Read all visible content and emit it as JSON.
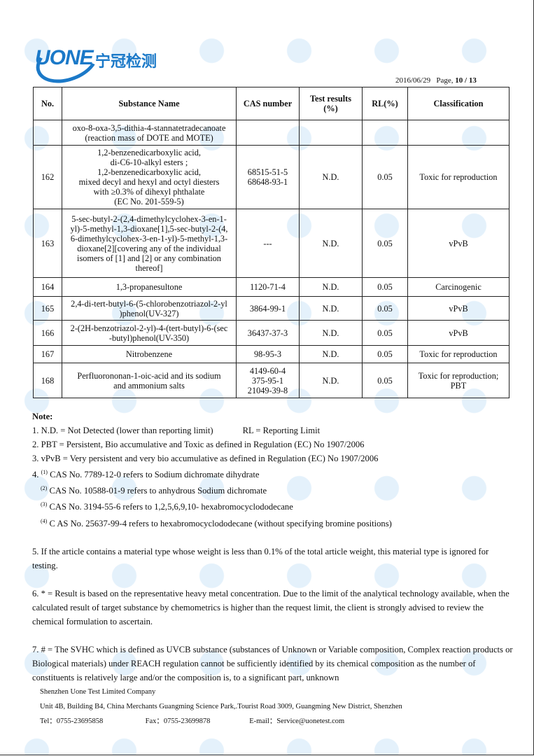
{
  "header": {
    "logo_text": "UONE",
    "logo_cn": "宁冠检测",
    "brand_color": "#1b79c8",
    "date": "2016/06/29",
    "page_label": "Page,",
    "page_number": "10 / 13"
  },
  "table": {
    "columns": [
      "No.",
      "Substance Name",
      "CAS number",
      "Test results\n(%)",
      "RL(%)",
      "Classification"
    ],
    "rows": [
      {
        "no": "",
        "name": "oxo-8-oxa-3,5-dithia-4-stannatetradecanoate\n(reaction mass of DOTE and MOTE)",
        "cas": "",
        "result": "",
        "rl": "",
        "class": ""
      },
      {
        "no": "162",
        "name": "1,2-benzenedicarboxylic acid,\ndi-C6-10-alkyl esters ;\n1,2-benzenedicarboxylic acid,\nmixed decyl and hexyl and octyl diesters\nwith ≥0.3% of dihexyl phthalate\n(EC No. 201-559-5)",
        "cas": "68515-51-5\n68648-93-1",
        "result": "N.D.",
        "rl": "0.05",
        "class": "Toxic for reproduction"
      },
      {
        "no": "163",
        "name": "5-sec-butyl-2-(2,4-dimethylcyclohex-3-en-1-\nyl)-5-methyl-1,3-dioxane[1],5-sec-butyl-2-(4,\n6-dimethylcyclohex-3-en-1-yl)-5-methyl-1,3-\ndioxane[2][covering any of the individual\nisomers of [1] and [2] or any combination\nthereof]",
        "cas": "---",
        "result": "N.D.",
        "rl": "0.05",
        "class": "vPvB"
      },
      {
        "no": "164",
        "name": "1,3-propanesultone",
        "cas": "1120-71-4",
        "result": "N.D.",
        "rl": "0.05",
        "class": "Carcinogenic"
      },
      {
        "no": "165",
        "name": "2,4-di-tert-butyl-6-(5-chlorobenzotriazol-2-yl\n)phenol(UV-327)",
        "cas": "3864-99-1",
        "result": "N.D.",
        "rl": "0.05",
        "class": "vPvB"
      },
      {
        "no": "166",
        "name": "2-(2H-benzotriazol-2-yl)-4-(tert-butyl)-6-(sec\n-butyl)phenol(UV-350)",
        "cas": "36437-37-3",
        "result": "N.D.",
        "rl": "0.05",
        "class": "vPvB"
      },
      {
        "no": "167",
        "name": "Nitrobenzene",
        "cas": "98-95-3",
        "result": "N.D.",
        "rl": "0.05",
        "class": "Toxic for reproduction"
      },
      {
        "no": "168",
        "name": "Perfluorononan-1-oic-acid and its sodium\nand ammonium salts",
        "cas": "4149-60-4\n375-95-1\n21049-39-8",
        "result": "N.D.",
        "rl": "0.05",
        "class": "Toxic for reproduction;\nPBT"
      }
    ]
  },
  "notes": {
    "title": "Note:",
    "n1a": "1. N.D. = Not Detected (lower than reporting limit)",
    "n1b": "RL = Reporting Limit",
    "n2": "2. PBT = Persistent, Bio accumulative and Toxic as defined in Regulation (EC) No 1907/2006",
    "n3": "3. vPvB = Very persistent and very bio accumulative as defined in Regulation (EC) No 1907/2006",
    "n4_prefix": "4.",
    "n4": [
      {
        "sup": "(1)",
        "text": "CAS No. 7789-12-0 refers to Sodium dichromate dihydrate"
      },
      {
        "sup": "(2)",
        "text": "CAS No. 10588-01-9 refers to anhydrous Sodium dichromate"
      },
      {
        "sup": "(3)",
        "text": "CAS No. 3194-55-6 refers to 1,2,5,6,9,10- hexabromocyclododecane"
      },
      {
        "sup": "(4)",
        "text": "C AS No. 25637-99-4 refers to hexabromocyclododecane (without specifying bromine positions)"
      }
    ],
    "n5": "5. If the article contains a material type whose weight is less than 0.1% of the total article weight, this material type is ignored for testing.",
    "n6": "6. * = Result is based on the representative heavy metal concentration. Due to the limit of the analytical technology available, when the calculated result of target substance by chemometrics is higher than the request limit, the client is strongly advised to review the chemical formulation to ascertain.",
    "n7": "7. # = The SVHC which is defined as UVCB substance (substances of Unknown or Variable composition, Complex reaction products or Biological materials) under REACH regulation cannot be sufficiently identified by its chemical composition as the number of constituents is relatively large and/or the composition is, to a significant part, unknown"
  },
  "footer": {
    "company": "Shenzhen Uone Test Limited Company",
    "address": "Unit 4B, Building B4, China Merchants Guangming Science Park,.Tourist Road 3009, Guangming New District, Shenzhen",
    "tel": "Tel：0755-23695858",
    "fax": "Fax：0755-23699878",
    "email": "E-mail：Service@uonetest.com"
  }
}
